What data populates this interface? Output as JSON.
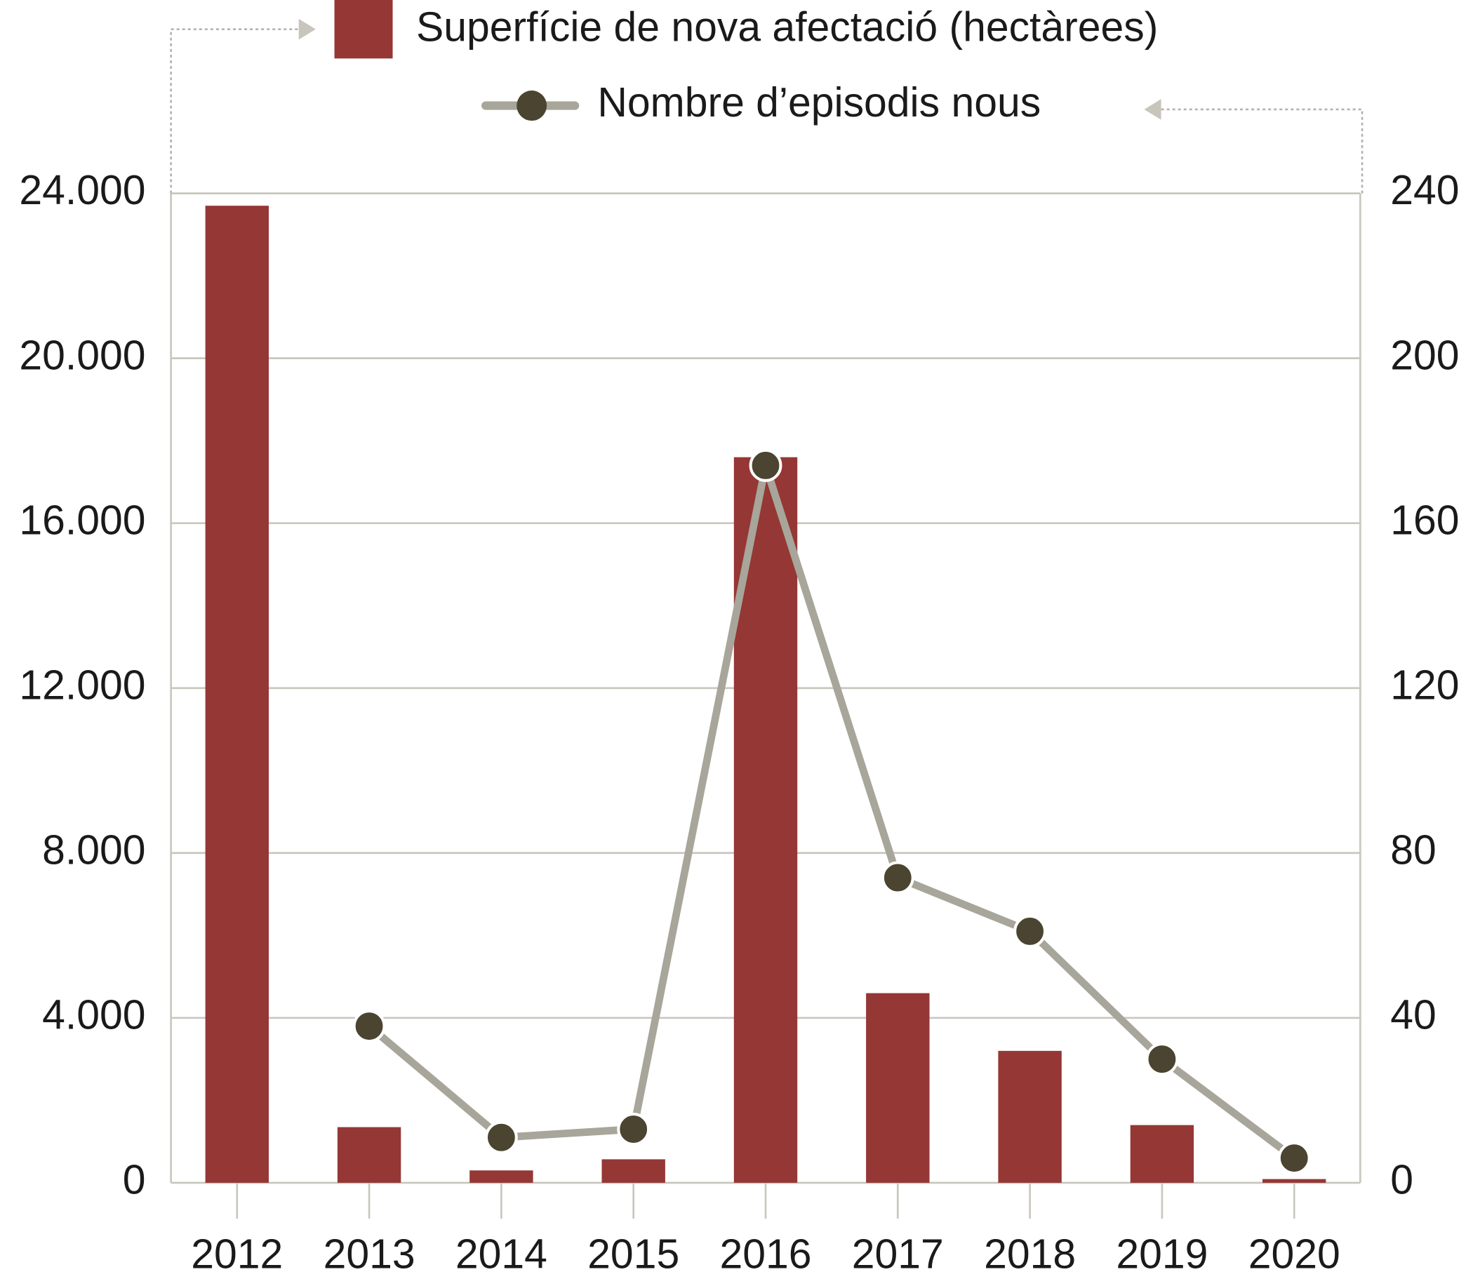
{
  "chart_data": {
    "type": "bar",
    "categories": [
      "2012",
      "2013",
      "2014",
      "2015",
      "2016",
      "2017",
      "2018",
      "2019",
      "2020"
    ],
    "series": [
      {
        "name": "Superfície de nova afectació (hectàrees)",
        "type": "bar",
        "axis": "y",
        "color": "#953735",
        "values": [
          23700,
          1350,
          300,
          570,
          17600,
          4600,
          3200,
          1400,
          90
        ]
      },
      {
        "name": "Nombre d’episodis nous",
        "type": "line",
        "axis": "y2",
        "color": "#a8a59a",
        "marker_color": "#4a4430",
        "values": [
          null,
          38,
          11,
          13,
          174,
          74,
          61,
          30,
          6
        ]
      }
    ],
    "ylim": [
      0,
      24000
    ],
    "yticks": [
      {
        "value": 0,
        "label": "0"
      },
      {
        "value": 4000,
        "label": "4.000"
      },
      {
        "value": 8000,
        "label": "8.000"
      },
      {
        "value": 12000,
        "label": "12.000"
      },
      {
        "value": 16000,
        "label": "16.000"
      },
      {
        "value": 20000,
        "label": "20.000"
      },
      {
        "value": 24000,
        "label": "24.000"
      }
    ],
    "y2lim": [
      0,
      240
    ],
    "y2ticks": [
      0,
      40,
      80,
      120,
      160,
      200,
      240
    ],
    "grid": true
  }
}
